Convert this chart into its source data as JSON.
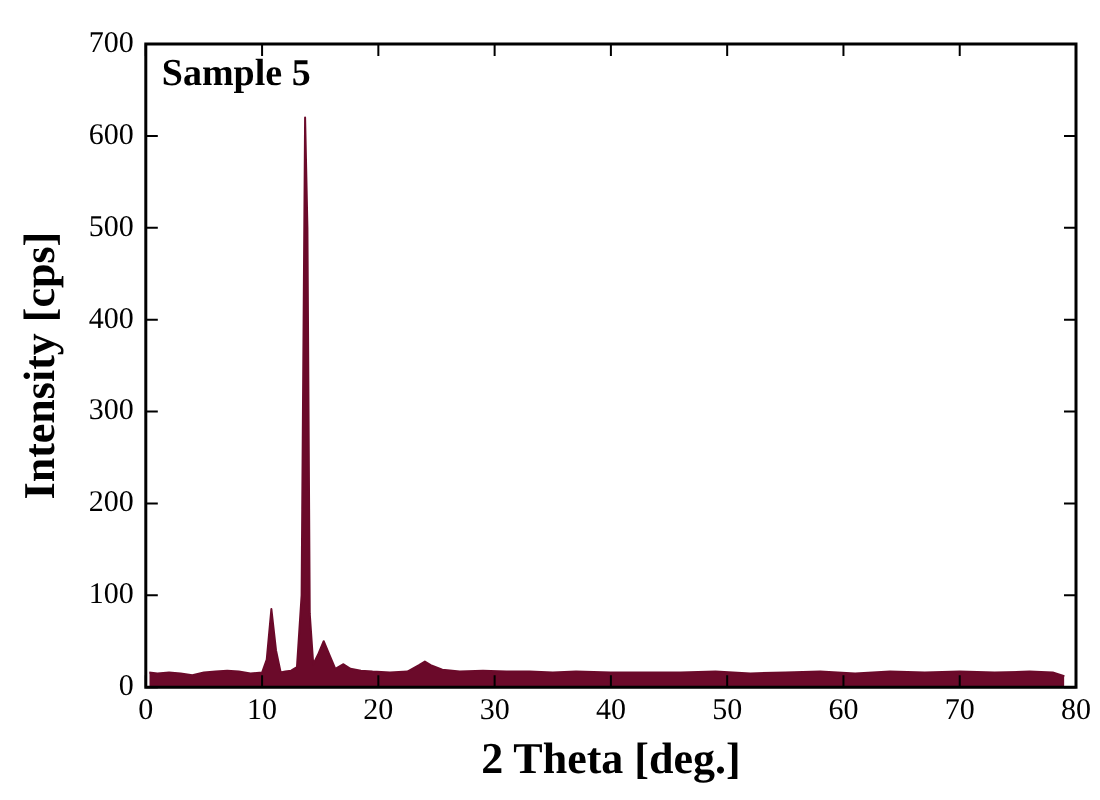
{
  "chart_data": {
    "type": "area",
    "xlabel": "2 Theta [deg.]",
    "ylabel": "Intensity [cps]",
    "annotations": [
      "Sample 5"
    ],
    "xlim": [
      0,
      80
    ],
    "xticks": [
      0,
      10,
      20,
      30,
      40,
      50,
      60,
      70,
      80
    ],
    "ylim": [
      0,
      700
    ],
    "yticks": [
      0,
      100,
      200,
      300,
      400,
      500,
      600,
      700
    ],
    "grid": false,
    "legend": false,
    "series": [
      {
        "color": "#6b0a2a",
        "x": [
          0.3,
          1,
          2,
          3,
          4,
          5,
          6,
          7,
          8,
          9,
          10,
          10.4,
          10.8,
          11.2,
          11.6,
          12,
          12.5,
          13,
          13.4,
          13.7,
          13.9,
          14.1,
          14.4,
          14.8,
          15.3,
          15.8,
          16.3,
          17,
          17.6,
          18.5,
          19.5,
          21,
          22.5,
          23.5,
          24,
          24.5,
          25.5,
          27,
          29,
          31,
          33,
          35,
          37,
          40,
          43,
          46,
          49,
          52,
          55,
          58,
          61,
          64,
          67,
          70,
          73,
          76,
          78,
          79
        ],
        "values": [
          16,
          15,
          16,
          15,
          13,
          16,
          17,
          18,
          17,
          15,
          16,
          30,
          85,
          40,
          16,
          17,
          18,
          22,
          100,
          620,
          500,
          80,
          25,
          35,
          50,
          35,
          20,
          25,
          20,
          18,
          17,
          16,
          17,
          24,
          28,
          24,
          19,
          17,
          18,
          17,
          17,
          16,
          17,
          16,
          16,
          16,
          17,
          15,
          16,
          17,
          15,
          17,
          16,
          17,
          16,
          17,
          16,
          12
        ]
      }
    ]
  }
}
